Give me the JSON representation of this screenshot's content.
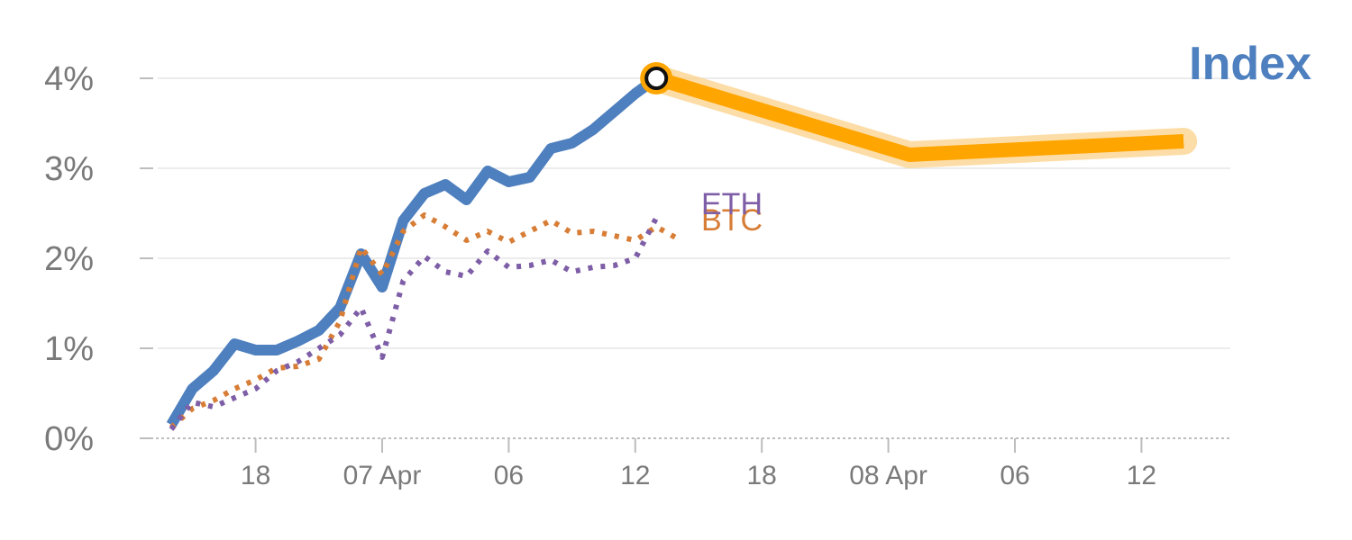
{
  "chart_data": {
    "type": "line",
    "title": "Index",
    "xlabel": "",
    "ylabel": "",
    "ylim": [
      0,
      4
    ],
    "y_ticks": [
      {
        "value": 0,
        "label": "0%"
      },
      {
        "value": 1,
        "label": "1%"
      },
      {
        "value": 2,
        "label": "2%"
      },
      {
        "value": 3,
        "label": "3%"
      },
      {
        "value": 4,
        "label": "4%"
      }
    ],
    "x_ticks": [
      {
        "pos": 4,
        "label": "18"
      },
      {
        "pos": 10,
        "label": "07 Apr"
      },
      {
        "pos": 16,
        "label": "06"
      },
      {
        "pos": 22,
        "label": "12"
      },
      {
        "pos": 28,
        "label": "18"
      },
      {
        "pos": 34,
        "label": "08 Apr"
      },
      {
        "pos": 40,
        "label": "06"
      },
      {
        "pos": 46,
        "label": "12"
      }
    ],
    "grid": true,
    "series": [
      {
        "name": "Index",
        "style": "solid",
        "color": "#4e7fbe",
        "x": [
          0,
          1,
          2,
          3,
          4,
          5,
          6,
          7,
          8,
          9,
          10,
          11,
          12,
          13,
          14,
          15,
          16,
          17,
          18,
          19,
          20,
          21,
          22,
          23
        ],
        "values": [
          0.15,
          0.55,
          0.75,
          1.05,
          0.98,
          0.98,
          1.08,
          1.2,
          1.45,
          2.05,
          1.68,
          2.42,
          2.72,
          2.82,
          2.65,
          2.97,
          2.85,
          2.9,
          3.22,
          3.28,
          3.43,
          3.63,
          3.83,
          4.0
        ]
      },
      {
        "name": "BTC",
        "style": "dotted",
        "color": "#d77d36",
        "x": [
          0,
          1,
          2,
          3,
          4,
          5,
          6,
          7,
          8,
          9,
          10,
          11,
          12,
          13,
          14,
          15,
          16,
          17,
          18,
          19,
          20,
          21,
          22,
          23,
          24
        ],
        "values": [
          0.12,
          0.33,
          0.42,
          0.55,
          0.65,
          0.78,
          0.8,
          0.88,
          1.3,
          2.12,
          1.82,
          2.3,
          2.48,
          2.35,
          2.2,
          2.3,
          2.18,
          2.3,
          2.42,
          2.28,
          2.3,
          2.25,
          2.2,
          2.35,
          2.22
        ]
      },
      {
        "name": "ETH",
        "style": "dotted",
        "color": "#7e5ea6",
        "x": [
          0,
          1,
          2,
          3,
          4,
          5,
          6,
          7,
          8,
          9,
          10,
          11,
          12,
          13,
          14,
          15,
          16,
          17,
          18,
          19,
          20,
          21,
          22,
          23
        ],
        "values": [
          0.1,
          0.4,
          0.35,
          0.45,
          0.55,
          0.75,
          0.85,
          1.0,
          1.15,
          1.45,
          0.9,
          1.75,
          2.02,
          1.85,
          1.8,
          2.08,
          1.9,
          1.92,
          1.98,
          1.85,
          1.9,
          1.92,
          2.0,
          2.45
        ]
      },
      {
        "name": "",
        "style": "projection",
        "color": "#ffa500",
        "x": [
          23,
          35,
          48
        ],
        "values": [
          4.0,
          3.15,
          3.3
        ]
      }
    ],
    "highlight_point": {
      "x": 23,
      "value": 4.0
    },
    "colors": {
      "axis": "#bdbdbd",
      "tick_text": "#7a7a7a",
      "grid": "#e6e6e6",
      "marker_ring": "#ffa500",
      "marker_center": "#ffffff"
    }
  }
}
